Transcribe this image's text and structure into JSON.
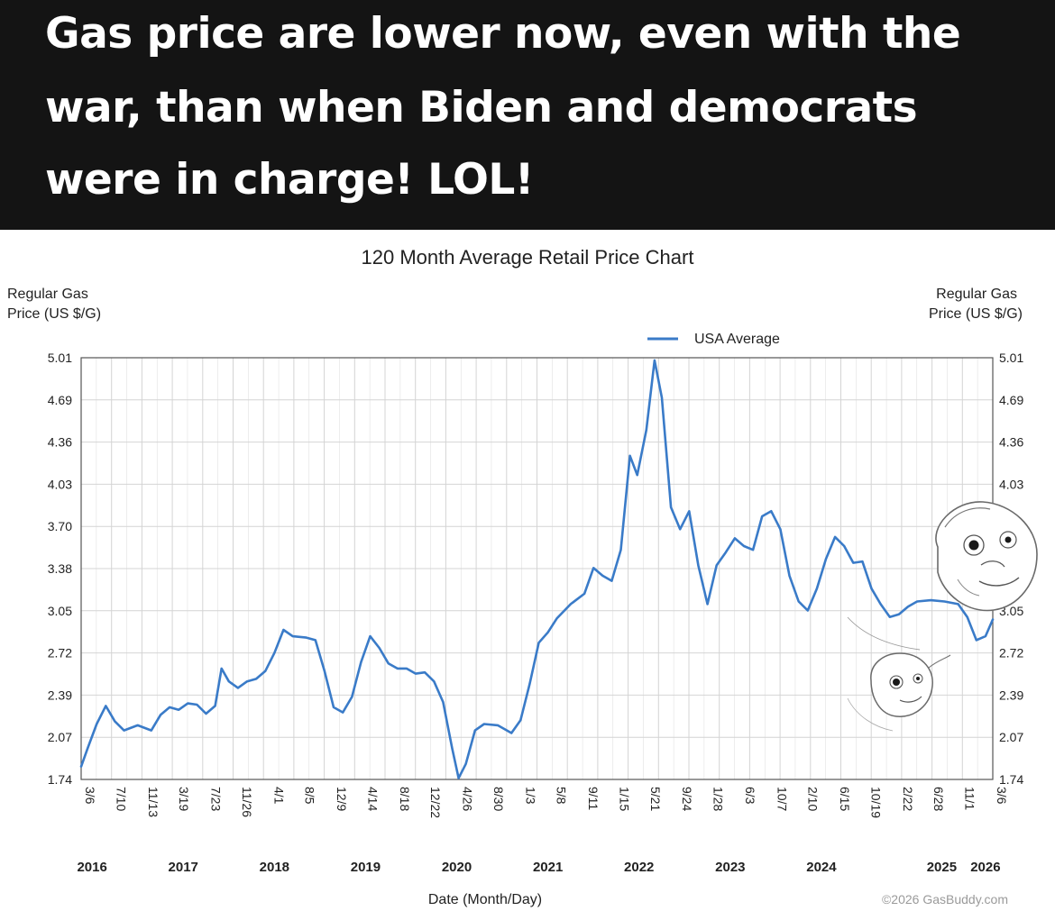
{
  "caption": {
    "lines": [
      "Gas price are lower now, even with the",
      "war, than when Biden and democrats",
      "were in charge! LOL!"
    ]
  },
  "chart_data": {
    "type": "line",
    "title": "120 Month Average Retail Price Chart",
    "ylabel_left": [
      "Regular Gas",
      "Price (US $/G)"
    ],
    "ylabel_right": [
      "Regular Gas",
      "Price (US $/G)"
    ],
    "xlabel": "Date (Month/Day)",
    "legend": {
      "label": "USA Average",
      "placement": "top-right",
      "color": "#3a7bc8"
    },
    "ylim": [
      1.74,
      5.01
    ],
    "xlim": [
      2016.18,
      2026.18
    ],
    "y_ticks": [
      "5.01",
      "4.69",
      "4.36",
      "4.03",
      "3.70",
      "3.38",
      "3.05",
      "2.72",
      "2.39",
      "2.07",
      "1.74"
    ],
    "x_ticks": [
      {
        "label": "3/6",
        "x": 2016.18
      },
      {
        "label": "7/10",
        "x": 2016.52
      },
      {
        "label": "11/13",
        "x": 2016.87
      },
      {
        "label": "3/19",
        "x": 2017.21
      },
      {
        "label": "7/23",
        "x": 2017.56
      },
      {
        "label": "11/26",
        "x": 2017.9
      },
      {
        "label": "4/1",
        "x": 2018.25
      },
      {
        "label": "8/5",
        "x": 2018.59
      },
      {
        "label": "12/9",
        "x": 2018.94
      },
      {
        "label": "4/14",
        "x": 2019.28
      },
      {
        "label": "8/18",
        "x": 2019.63
      },
      {
        "label": "12/22",
        "x": 2019.97
      },
      {
        "label": "4/26",
        "x": 2020.32
      },
      {
        "label": "8/30",
        "x": 2020.66
      },
      {
        "label": "1/3",
        "x": 2021.01
      },
      {
        "label": "5/8",
        "x": 2021.35
      },
      {
        "label": "9/11",
        "x": 2021.7
      },
      {
        "label": "1/15",
        "x": 2022.04
      },
      {
        "label": "5/21",
        "x": 2022.38
      },
      {
        "label": "9/24",
        "x": 2022.73
      },
      {
        "label": "1/28",
        "x": 2023.07
      },
      {
        "label": "6/3",
        "x": 2023.42
      },
      {
        "label": "10/7",
        "x": 2023.77
      },
      {
        "label": "2/10",
        "x": 2024.11
      },
      {
        "label": "6/15",
        "x": 2024.46
      },
      {
        "label": "10/19",
        "x": 2024.8
      },
      {
        "label": "2/22",
        "x": 2025.15
      },
      {
        "label": "6/28",
        "x": 2025.49
      },
      {
        "label": "11/1",
        "x": 2025.83
      },
      {
        "label": "3/6",
        "x": 2026.18
      }
    ],
    "year_labels": [
      {
        "label": "2016",
        "x": 2016.3
      },
      {
        "label": "2017",
        "x": 2017.3
      },
      {
        "label": "2018",
        "x": 2018.3
      },
      {
        "label": "2019",
        "x": 2019.3
      },
      {
        "label": "2020",
        "x": 2020.3
      },
      {
        "label": "2021",
        "x": 2021.3
      },
      {
        "label": "2022",
        "x": 2022.3
      },
      {
        "label": "2023",
        "x": 2023.3
      },
      {
        "label": "2024",
        "x": 2024.3
      },
      {
        "label": "2025",
        "x": 2025.62
      },
      {
        "label": "2026",
        "x": 2026.1
      }
    ],
    "series": [
      {
        "name": "USA Average",
        "points": [
          [
            2016.18,
            1.84
          ],
          [
            2016.25,
            1.98
          ],
          [
            2016.35,
            2.17
          ],
          [
            2016.45,
            2.31
          ],
          [
            2016.55,
            2.19
          ],
          [
            2016.65,
            2.12
          ],
          [
            2016.8,
            2.16
          ],
          [
            2016.95,
            2.12
          ],
          [
            2017.05,
            2.24
          ],
          [
            2017.15,
            2.3
          ],
          [
            2017.25,
            2.28
          ],
          [
            2017.35,
            2.33
          ],
          [
            2017.45,
            2.32
          ],
          [
            2017.55,
            2.25
          ],
          [
            2017.65,
            2.31
          ],
          [
            2017.72,
            2.6
          ],
          [
            2017.8,
            2.5
          ],
          [
            2017.9,
            2.45
          ],
          [
            2018.0,
            2.5
          ],
          [
            2018.1,
            2.52
          ],
          [
            2018.2,
            2.58
          ],
          [
            2018.3,
            2.72
          ],
          [
            2018.4,
            2.9
          ],
          [
            2018.5,
            2.85
          ],
          [
            2018.65,
            2.84
          ],
          [
            2018.75,
            2.82
          ],
          [
            2018.85,
            2.58
          ],
          [
            2018.95,
            2.3
          ],
          [
            2019.05,
            2.26
          ],
          [
            2019.15,
            2.38
          ],
          [
            2019.25,
            2.65
          ],
          [
            2019.35,
            2.85
          ],
          [
            2019.45,
            2.76
          ],
          [
            2019.55,
            2.64
          ],
          [
            2019.65,
            2.6
          ],
          [
            2019.75,
            2.6
          ],
          [
            2019.85,
            2.56
          ],
          [
            2019.95,
            2.57
          ],
          [
            2020.05,
            2.5
          ],
          [
            2020.15,
            2.34
          ],
          [
            2020.25,
            1.98
          ],
          [
            2020.32,
            1.75
          ],
          [
            2020.4,
            1.86
          ],
          [
            2020.5,
            2.12
          ],
          [
            2020.6,
            2.17
          ],
          [
            2020.75,
            2.16
          ],
          [
            2020.9,
            2.1
          ],
          [
            2021.0,
            2.2
          ],
          [
            2021.1,
            2.48
          ],
          [
            2021.2,
            2.8
          ],
          [
            2021.3,
            2.88
          ],
          [
            2021.4,
            2.99
          ],
          [
            2021.55,
            3.1
          ],
          [
            2021.7,
            3.18
          ],
          [
            2021.8,
            3.38
          ],
          [
            2021.9,
            3.32
          ],
          [
            2022.0,
            3.28
          ],
          [
            2022.1,
            3.52
          ],
          [
            2022.2,
            4.25
          ],
          [
            2022.28,
            4.1
          ],
          [
            2022.38,
            4.45
          ],
          [
            2022.47,
            4.99
          ],
          [
            2022.55,
            4.7
          ],
          [
            2022.65,
            3.85
          ],
          [
            2022.75,
            3.68
          ],
          [
            2022.85,
            3.82
          ],
          [
            2022.95,
            3.4
          ],
          [
            2023.05,
            3.1
          ],
          [
            2023.15,
            3.4
          ],
          [
            2023.25,
            3.5
          ],
          [
            2023.35,
            3.61
          ],
          [
            2023.45,
            3.55
          ],
          [
            2023.55,
            3.52
          ],
          [
            2023.65,
            3.78
          ],
          [
            2023.75,
            3.82
          ],
          [
            2023.85,
            3.68
          ],
          [
            2023.95,
            3.32
          ],
          [
            2024.05,
            3.12
          ],
          [
            2024.15,
            3.05
          ],
          [
            2024.25,
            3.22
          ],
          [
            2024.35,
            3.45
          ],
          [
            2024.45,
            3.62
          ],
          [
            2024.55,
            3.55
          ],
          [
            2024.65,
            3.42
          ],
          [
            2024.75,
            3.43
          ],
          [
            2024.85,
            3.22
          ],
          [
            2024.95,
            3.1
          ],
          [
            2025.05,
            3.0
          ],
          [
            2025.15,
            3.02
          ],
          [
            2025.25,
            3.08
          ],
          [
            2025.35,
            3.12
          ],
          [
            2025.5,
            3.13
          ],
          [
            2025.65,
            3.12
          ],
          [
            2025.8,
            3.1
          ],
          [
            2025.9,
            3.0
          ],
          [
            2026.0,
            2.82
          ],
          [
            2026.1,
            2.85
          ],
          [
            2026.18,
            2.98
          ]
        ]
      }
    ],
    "grid": true,
    "copyright": "©2026 GasBuddy.com",
    "colors": {
      "caption_bg": "#141414",
      "line": "#3a7bc8",
      "grid": "#d4d4d4"
    }
  }
}
